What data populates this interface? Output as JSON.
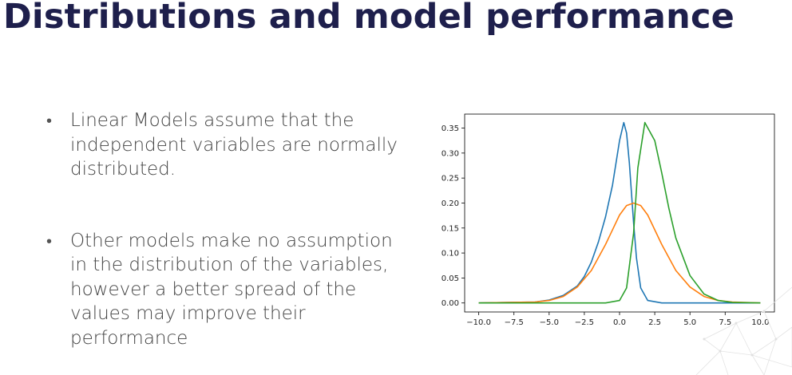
{
  "slide": {
    "title": "Distributions and model performance",
    "bullets": [
      "Linear Models assume that the independent variables are normally distributed.",
      "Other models make no assumption in the distribution of the variables, however a better spread of the values may improve their performance"
    ]
  },
  "chart_data": {
    "type": "line",
    "title": "",
    "xlabel": "",
    "ylabel": "",
    "xlim": [
      -11,
      11
    ],
    "ylim": [
      -0.018,
      0.378
    ],
    "xticks": [
      "-10.0",
      "-7.5",
      "-5.0",
      "-2.5",
      "0.0",
      "2.5",
      "5.0",
      "7.5",
      "10.0"
    ],
    "xtick_values": [
      -10,
      -7.5,
      -5,
      -2.5,
      0,
      2.5,
      5,
      7.5,
      10
    ],
    "yticks": [
      "0.00",
      "0.05",
      "0.10",
      "0.15",
      "0.20",
      "0.25",
      "0.30",
      "0.35"
    ],
    "ytick_values": [
      0,
      0.05,
      0.1,
      0.15,
      0.2,
      0.25,
      0.3,
      0.35
    ],
    "grid": false,
    "series": [
      {
        "color": "#1f77b4",
        "x": [
          -10,
          -6,
          -5,
          -4,
          -3,
          -2.5,
          -2,
          -1.5,
          -1,
          -0.5,
          0,
          0.3,
          0.5,
          0.7,
          1,
          1.2,
          1.5,
          2,
          3,
          10
        ],
        "y": [
          0,
          0.002,
          0.006,
          0.015,
          0.034,
          0.053,
          0.082,
          0.122,
          0.172,
          0.236,
          0.325,
          0.361,
          0.34,
          0.28,
          0.16,
          0.09,
          0.03,
          0.005,
          0,
          0
        ]
      },
      {
        "color": "#ff7f0e",
        "x": [
          -10,
          -6,
          -5,
          -4,
          -3,
          -2,
          -1,
          0,
          0.5,
          1,
          1.5,
          2,
          3,
          4,
          5,
          6,
          7,
          8,
          10
        ],
        "y": [
          0,
          0.002,
          0.005,
          0.013,
          0.032,
          0.065,
          0.117,
          0.176,
          0.195,
          0.2,
          0.195,
          0.176,
          0.117,
          0.065,
          0.032,
          0.013,
          0.005,
          0.002,
          0
        ]
      },
      {
        "color": "#2ca02c",
        "x": [
          -10,
          -1,
          0,
          0.5,
          1,
          1.3,
          1.8,
          2.5,
          3,
          3.5,
          4,
          5,
          6,
          7,
          8,
          10
        ],
        "y": [
          0,
          0,
          0.005,
          0.03,
          0.14,
          0.27,
          0.361,
          0.325,
          0.26,
          0.19,
          0.13,
          0.055,
          0.018,
          0.005,
          0.001,
          0
        ]
      }
    ]
  }
}
